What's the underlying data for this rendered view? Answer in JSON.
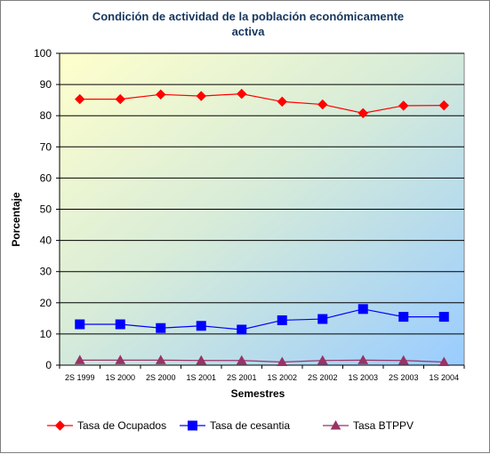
{
  "chart_data": {
    "type": "line",
    "title_lines": [
      "Condición de actividad de la población económicamente",
      "activa"
    ],
    "xlabel": "Semestres",
    "ylabel": "Porcentaje",
    "categories": [
      "2S 1999",
      "1S 2000",
      "2S 2000",
      "1S 2001",
      "2S 2001",
      "1S 2002",
      "2S 2002",
      "1S 2003",
      "2S 2003",
      "1S 2004"
    ],
    "ylim": [
      0,
      100
    ],
    "yticks": [
      0,
      10,
      20,
      30,
      40,
      50,
      60,
      70,
      80,
      90,
      100
    ],
    "grid": true,
    "legend_position": "bottom",
    "series": [
      {
        "name": "Tasa de Ocupados",
        "color": "#ff0000",
        "marker": "diamond",
        "values": [
          85.3,
          85.3,
          86.8,
          86.3,
          87.0,
          84.5,
          83.6,
          80.8,
          83.2,
          83.3
        ]
      },
      {
        "name": "Tasa de cesantia",
        "color": "#0000ff",
        "marker": "square",
        "values": [
          13.1,
          13.1,
          11.9,
          12.6,
          11.4,
          14.4,
          14.8,
          18.0,
          15.5,
          15.5
        ]
      },
      {
        "name": "Tasa BTPPV",
        "color": "#993366",
        "marker": "triangle",
        "values": [
          1.6,
          1.6,
          1.6,
          1.5,
          1.5,
          1.0,
          1.5,
          1.6,
          1.5,
          1.0
        ]
      }
    ]
  }
}
